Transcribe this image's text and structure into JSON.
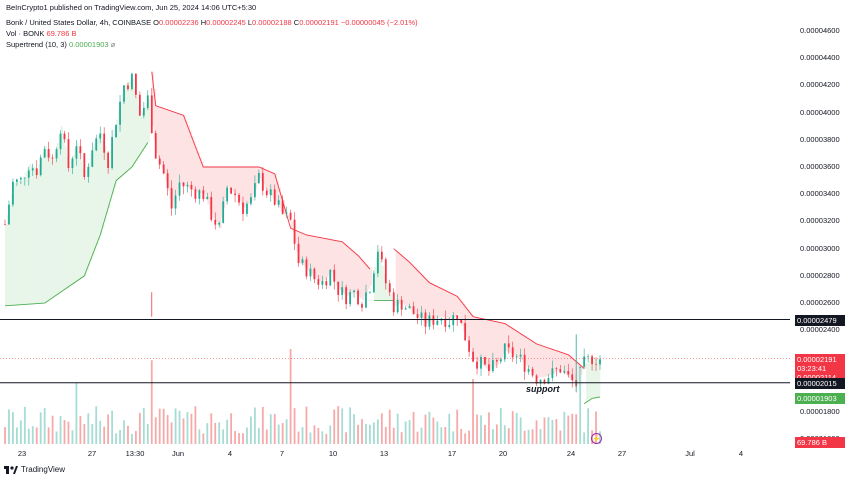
{
  "publisher_line": "BeInCrypto1 published on TradingView.com, Jun 25, 2024 14:06 UTC+5:30",
  "legend": {
    "symbol": "Bonk / United States Dollar, 4h, COINBASE",
    "o_label": "O",
    "o_value": "0.00002236",
    "h_label": "H",
    "h_value": "0.00002245",
    "l_label": "L",
    "l_value": "0.00002188",
    "c_label": "C",
    "c_value": "0.00002191",
    "change": "−0.00000045 (−2.01%)",
    "vol_label": "Vol · BONK",
    "vol_value": "69.786 B",
    "st_label": "Supertrend (10, 3)",
    "st_value": "0.00001903"
  },
  "price_ticks": [
    "0.00004600",
    "0.00004400",
    "0.00004200",
    "0.00004000",
    "0.00003800",
    "0.00003600",
    "0.00003400",
    "0.00003200",
    "0.00003000",
    "0.00002800",
    "0.00002600",
    "0.00002400",
    "0.00001800",
    "0.00001600"
  ],
  "time_ticks": [
    "23",
    "27",
    "13:30",
    "Jun",
    "4",
    "7",
    "10",
    "13",
    "17",
    "20",
    "24",
    "27",
    "Jul",
    "4"
  ],
  "tags": {
    "resistance": "0.00002479",
    "last_price": "0.00002191",
    "countdown": "03:23:41",
    "prev_close": "0.00002114",
    "support": "0.00002015",
    "supertrend": "0.00001903",
    "volume": "69.786 B"
  },
  "support_text": "support",
  "logo_text": "TradingView",
  "colors": {
    "up": "#22ab94",
    "down": "#f23645",
    "supertrend_up": "#4caf50",
    "supertrend_down": "#f23645",
    "fill_up": "#e8f5e9",
    "fill_down": "#fde3e3",
    "hline": "#131722"
  },
  "chart_data": {
    "type": "candlestick",
    "title": "Bonk / United States Dollar, 4h, COINBASE",
    "ylim": [
      1.55e-05,
      4.68e-05
    ],
    "horizontal_lines": [
      2.479e-05,
      2.015e-05
    ],
    "close_path": [
      [
        0,
        3.18e-05
      ],
      [
        4,
        3.48e-05
      ],
      [
        8,
        3.5e-05
      ],
      [
        12,
        3.62e-05
      ],
      [
        16,
        3.58e-05
      ],
      [
        20,
        3.75e-05
      ],
      [
        24,
        3.65e-05
      ],
      [
        28,
        3.9e-05
      ],
      [
        32,
        3.6e-05
      ],
      [
        36,
        3.78e-05
      ],
      [
        40,
        3.52e-05
      ],
      [
        44,
        3.75e-05
      ],
      [
        48,
        3.85e-05
      ],
      [
        52,
        3.65e-05
      ],
      [
        56,
        3.95e-05
      ],
      [
        60,
        4.2e-05
      ],
      [
        64,
        4.25e-05
      ],
      [
        68,
        3.98e-05
      ],
      [
        72,
        4.1e-05
      ],
      [
        76,
        3.7e-05
      ],
      [
        80,
        3.55e-05
      ],
      [
        84,
        3.3e-05
      ],
      [
        88,
        3.48e-05
      ],
      [
        92,
        3.45e-05
      ],
      [
        96,
        3.42e-05
      ],
      [
        100,
        3.4e-05
      ],
      [
        104,
        3.25e-05
      ],
      [
        108,
        3.15e-05
      ],
      [
        112,
        3.45e-05
      ],
      [
        116,
        3.4e-05
      ],
      [
        120,
        3.3e-05
      ],
      [
        124,
        3.35e-05
      ],
      [
        128,
        3.52e-05
      ],
      [
        132,
        3.42e-05
      ],
      [
        136,
        3.35e-05
      ],
      [
        140,
        3.25e-05
      ],
      [
        144,
        3.2e-05
      ],
      [
        148,
        2.9e-05
      ],
      [
        152,
        2.85e-05
      ],
      [
        156,
        2.78e-05
      ],
      [
        160,
        2.75e-05
      ],
      [
        164,
        2.83e-05
      ],
      [
        168,
        2.7e-05
      ],
      [
        172,
        2.65e-05
      ],
      [
        176,
        2.68e-05
      ],
      [
        180,
        2.62e-05
      ],
      [
        184,
        2.73e-05
      ],
      [
        188,
        3e-05
      ],
      [
        192,
        2.75e-05
      ],
      [
        196,
        2.58e-05
      ],
      [
        200,
        2.6e-05
      ],
      [
        204,
        2.55e-05
      ],
      [
        208,
        2.5e-05
      ],
      [
        212,
        2.45e-05
      ],
      [
        216,
        2.48e-05
      ],
      [
        220,
        2.5e-05
      ],
      [
        224,
        2.47e-05
      ],
      [
        228,
        2.52e-05
      ],
      [
        232,
        2.35e-05
      ],
      [
        236,
        2.2e-05
      ],
      [
        240,
        2.15e-05
      ],
      [
        244,
        2.1e-05
      ],
      [
        248,
        2.15e-05
      ],
      [
        252,
        2.25e-05
      ],
      [
        256,
        2.22e-05
      ],
      [
        260,
        2.18e-05
      ],
      [
        264,
        2.12e-05
      ],
      [
        268,
        2.05e-05
      ],
      [
        272,
        2.06e-05
      ],
      [
        276,
        2.08e-05
      ],
      [
        280,
        2.12e-05
      ],
      [
        284,
        2.05e-05
      ],
      [
        288,
        2e-05
      ],
      [
        292,
        2.15e-05
      ],
      [
        296,
        2.2e-05
      ],
      [
        300,
        2.19e-05
      ]
    ],
    "supertrend_segments": [
      {
        "trend": "up",
        "points": [
          [
            0,
            2.58e-05
          ],
          [
            20,
            2.6e-05
          ],
          [
            40,
            2.8e-05
          ],
          [
            48,
            3.1e-05
          ],
          [
            56,
            3.5e-05
          ],
          [
            64,
            3.6e-05
          ],
          [
            72,
            3.78e-05
          ]
        ]
      },
      {
        "trend": "down",
        "points": [
          [
            74,
            4.3e-05
          ],
          [
            76,
            4.05e-05
          ],
          [
            90,
            3.98e-05
          ],
          [
            96,
            3.75e-05
          ],
          [
            100,
            3.6e-05
          ],
          [
            128,
            3.6e-05
          ],
          [
            136,
            3.55e-05
          ],
          [
            144,
            3.15e-05
          ],
          [
            152,
            3.1e-05
          ],
          [
            170,
            3.05e-05
          ],
          [
            178,
            2.95e-05
          ],
          [
            184,
            2.85e-05
          ]
        ]
      },
      {
        "trend": "up",
        "points": [
          [
            186,
            2.62e-05
          ],
          [
            196,
            2.62e-05
          ]
        ]
      },
      {
        "trend": "down",
        "points": [
          [
            196,
            3e-05
          ],
          [
            204,
            2.9e-05
          ],
          [
            214,
            2.75e-05
          ],
          [
            228,
            2.65e-05
          ],
          [
            236,
            2.5e-05
          ],
          [
            252,
            2.45e-05
          ],
          [
            268,
            2.3e-05
          ],
          [
            284,
            2.22e-05
          ],
          [
            292,
            2.12e-05
          ]
        ]
      },
      {
        "trend": "up",
        "points": [
          [
            292,
            1.86e-05
          ],
          [
            296,
            1.9e-05
          ],
          [
            300,
            1.91e-05
          ]
        ]
      }
    ],
    "volume_spikes": [
      [
        36,
        0.55
      ],
      [
        74,
        0.85
      ],
      [
        144,
        1.0
      ],
      [
        236,
        0.6
      ],
      [
        290,
        0.75
      ]
    ]
  }
}
